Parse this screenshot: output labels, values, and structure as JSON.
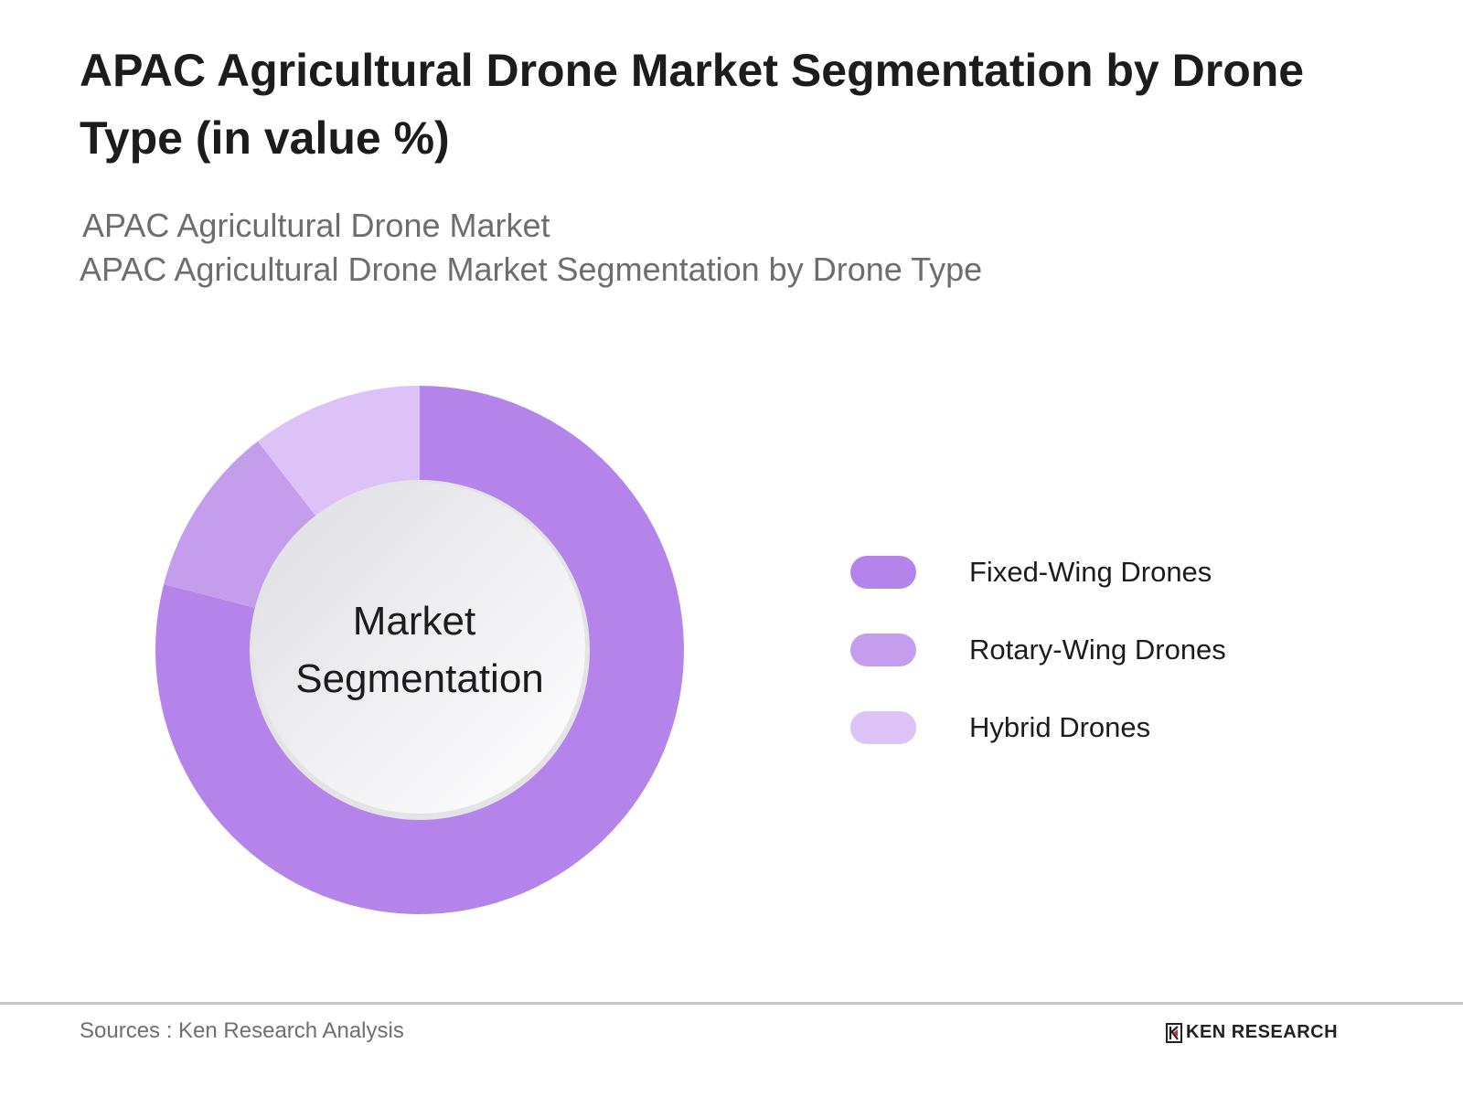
{
  "header": {
    "title": "APAC Agricultural Drone Market Segmentation by Drone Type (in value %)",
    "subtitle_line1": "APAC Agricultural Drone Market",
    "subtitle_line2": "APAC Agricultural Drone Market Segmentation by Drone Type"
  },
  "center_label": {
    "line1": "Market",
    "line2": "Segmentation"
  },
  "legend": {
    "items": [
      {
        "label": "Fixed-Wing Drones",
        "color": "#b484ea"
      },
      {
        "label": "Rotary-Wing Drones",
        "color": "#c59ded"
      },
      {
        "label": "Hybrid Drones",
        "color": "#dcc2f6"
      }
    ]
  },
  "footer": {
    "source": "Sources : Ken Research Analysis",
    "logo_text": "KEN RESEARCH"
  },
  "chart_data": {
    "type": "pie",
    "subtype": "donut",
    "title": "APAC Agricultural Drone Market Segmentation by Drone Type (in value %)",
    "categories": [
      "Fixed-Wing Drones",
      "Rotary-Wing Drones",
      "Hybrid Drones"
    ],
    "values": [
      79,
      10.5,
      10.5
    ],
    "colors": [
      "#b484ea",
      "#c59ded",
      "#dcc2f6"
    ],
    "center_text": "Market Segmentation",
    "legend_position": "right",
    "data_labels": false
  }
}
